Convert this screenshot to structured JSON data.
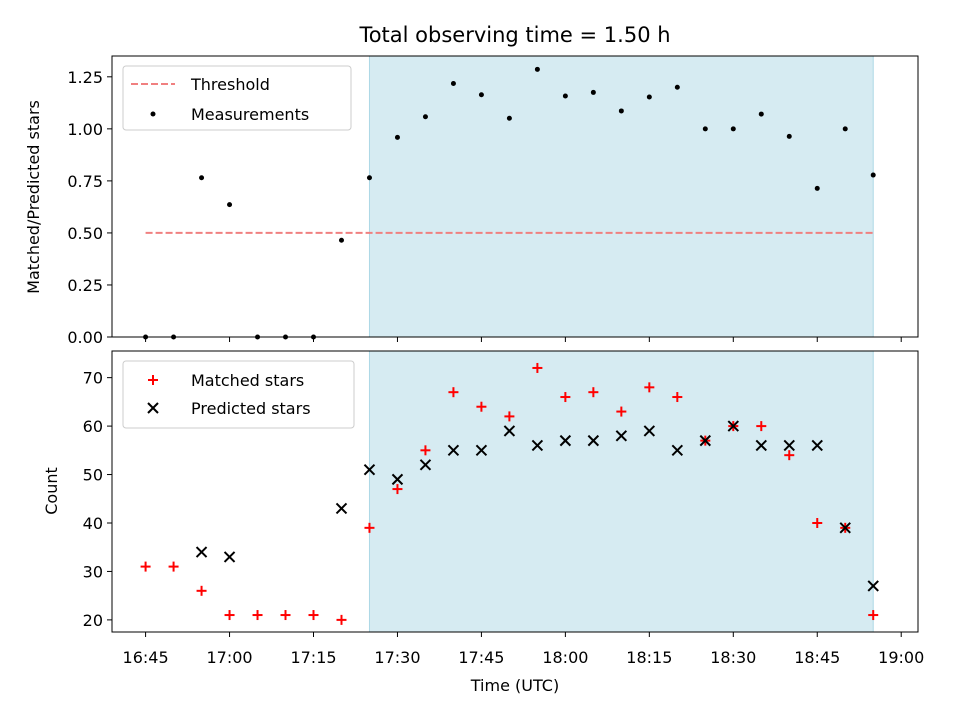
{
  "chart_data": [
    {
      "type": "scatter",
      "title": "Total observing time = 1.50 h",
      "ylabel": "Matched/Predicted stars",
      "xlabel": "",
      "ylim": [
        0,
        1.35
      ],
      "yticks": [
        "0.00",
        "0.25",
        "0.50",
        "0.75",
        "1.00",
        "1.25"
      ],
      "yticks_values": [
        0,
        0.25,
        0.5,
        0.75,
        1.0,
        1.25
      ],
      "grid": false,
      "legend_position": "upper-left",
      "shaded_span": {
        "from": "17:25",
        "to": "18:55",
        "color": "#add8e6"
      },
      "threshold": {
        "name": "Threshold",
        "value": 0.5,
        "from": "16:45",
        "to": "18:55",
        "color": "#f08080"
      },
      "series": [
        {
          "name": "Measurements",
          "color": "#000000",
          "x": [
            "16:45",
            "16:50",
            "16:55",
            "17:00",
            "17:05",
            "17:10",
            "17:15",
            "17:20",
            "17:25",
            "17:30",
            "17:35",
            "17:40",
            "17:45",
            "17:50",
            "17:55",
            "18:00",
            "18:05",
            "18:10",
            "18:15",
            "18:20",
            "18:25",
            "18:30",
            "18:35",
            "18:40",
            "18:45",
            "18:50",
            "18:55"
          ],
          "y": [
            0,
            0,
            0.765,
            0.636,
            0,
            0,
            0,
            0.465,
            0.765,
            0.959,
            1.058,
            1.218,
            1.164,
            1.051,
            1.286,
            1.158,
            1.175,
            1.086,
            1.153,
            1.2,
            1.0,
            1.0,
            1.071,
            0.964,
            0.714,
            1.0,
            0.778
          ]
        }
      ]
    },
    {
      "type": "scatter",
      "title": "",
      "xlabel": "Time (UTC)",
      "ylabel": "Count",
      "ylim": [
        17.5,
        75.5
      ],
      "yticks": [
        "20",
        "30",
        "40",
        "50",
        "60",
        "70"
      ],
      "yticks_values": [
        20,
        30,
        40,
        50,
        60,
        70
      ],
      "xlim": [
        "16:39",
        "19:03"
      ],
      "xticks": [
        "16:45",
        "17:00",
        "17:15",
        "17:30",
        "17:45",
        "18:00",
        "18:15",
        "18:30",
        "18:45",
        "19:00"
      ],
      "grid": false,
      "legend_position": "upper-left",
      "shaded_span": {
        "from": "17:25",
        "to": "18:55",
        "color": "#add8e6"
      },
      "series": [
        {
          "name": "Matched stars",
          "marker": "+",
          "color": "#ff0000",
          "x": [
            "16:45",
            "16:50",
            "16:55",
            "17:00",
            "17:05",
            "17:10",
            "17:15",
            "17:20",
            "17:25",
            "17:30",
            "17:35",
            "17:40",
            "17:45",
            "17:50",
            "17:55",
            "18:00",
            "18:05",
            "18:10",
            "18:15",
            "18:20",
            "18:25",
            "18:30",
            "18:35",
            "18:40",
            "18:45",
            "18:50",
            "18:55"
          ],
          "y": [
            31,
            31,
            26,
            21,
            21,
            21,
            21,
            20,
            39,
            47,
            55,
            67,
            64,
            62,
            72,
            66,
            67,
            63,
            68,
            66,
            57,
            60,
            60,
            54,
            40,
            39,
            21
          ]
        },
        {
          "name": "Predicted stars",
          "marker": "x",
          "color": "#000000",
          "x": [
            "16:55",
            "17:00",
            "17:20",
            "17:25",
            "17:30",
            "17:35",
            "17:40",
            "17:45",
            "17:50",
            "17:55",
            "18:00",
            "18:05",
            "18:10",
            "18:15",
            "18:20",
            "18:25",
            "18:30",
            "18:35",
            "18:40",
            "18:45",
            "18:50",
            "18:55"
          ],
          "y": [
            34,
            33,
            43,
            51,
            49,
            52,
            55,
            55,
            59,
            56,
            57,
            57,
            58,
            59,
            55,
            57,
            60,
            56,
            56,
            56,
            39,
            27
          ]
        }
      ]
    }
  ]
}
